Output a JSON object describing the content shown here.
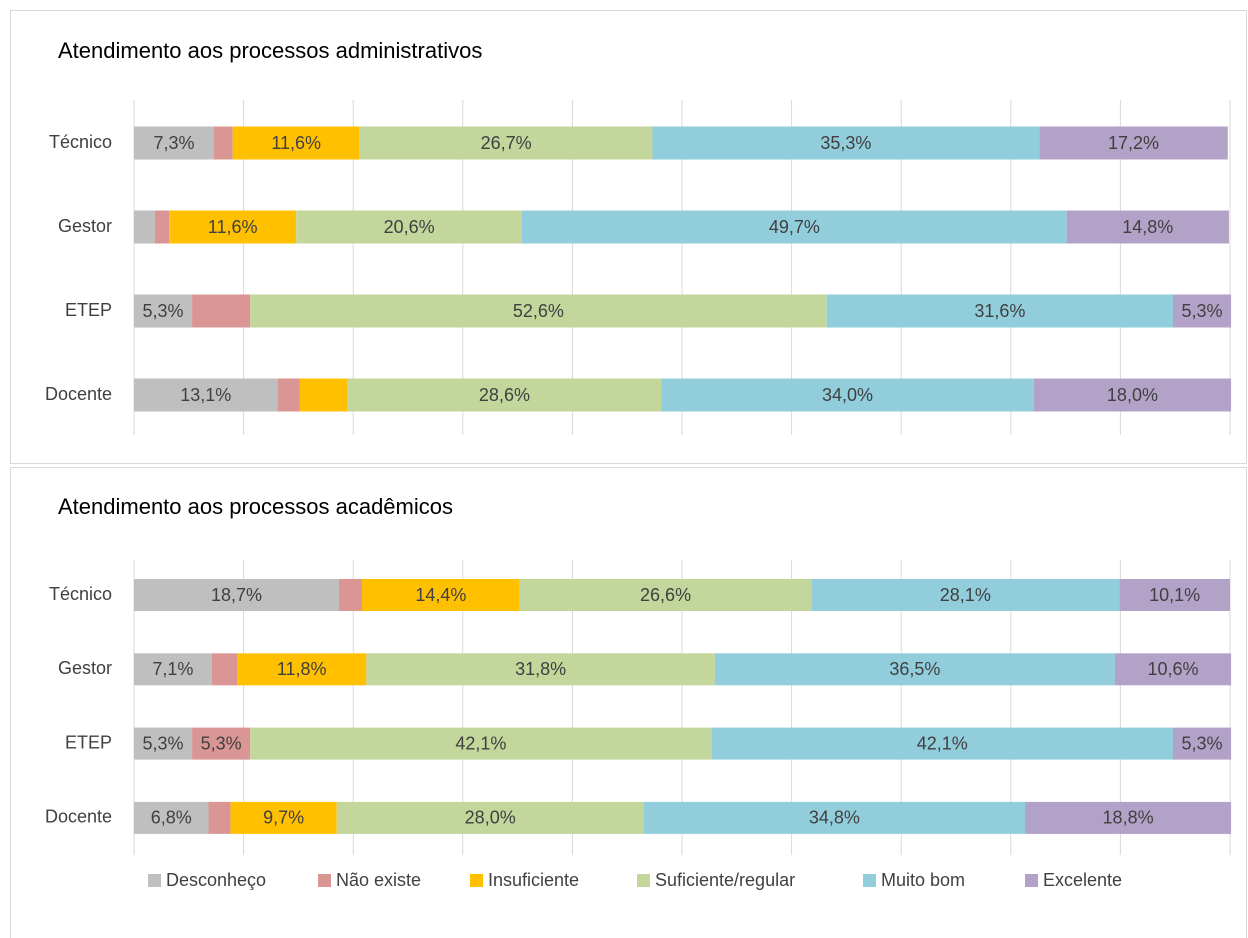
{
  "chart_data": [
    {
      "type": "stacked-bar-horizontal",
      "title": "Atendimento aos processos administrativos",
      "categories": [
        "Técnico",
        "Gestor",
        "ETEP",
        "Docente"
      ],
      "xlim": [
        0,
        100
      ],
      "xticks": [
        0,
        10,
        20,
        30,
        40,
        50,
        60,
        70,
        80,
        90,
        100
      ],
      "grid": true,
      "series": [
        {
          "color": "#bfbfbf",
          "values": [
            7.3,
            1.9,
            5.3,
            13.1
          ],
          "value_labels": [
            "7,3%",
            null,
            "5,3%",
            "13,1%"
          ]
        },
        {
          "color": "#d99694",
          "values": [
            1.7,
            1.3,
            5.3,
            2.0
          ],
          "value_labels": [
            null,
            null,
            null,
            null
          ]
        },
        {
          "color": "#ffc000",
          "values": [
            11.6,
            11.6,
            0,
            4.4
          ],
          "value_labels": [
            "11,6%",
            "11,6%",
            null,
            null
          ]
        },
        {
          "color": "#c3d69b",
          "values": [
            26.7,
            20.6,
            52.6,
            28.6
          ],
          "value_labels": [
            "26,7%",
            "20,6%",
            "52,6%",
            "28,6%"
          ]
        },
        {
          "color": "#92cddc",
          "values": [
            35.3,
            49.7,
            31.6,
            34.0
          ],
          "value_labels": [
            "35,3%",
            "49,7%",
            "31,6%",
            "34,0%"
          ]
        },
        {
          "color": "#b3a2c7",
          "values": [
            17.2,
            14.8,
            5.3,
            18.0
          ],
          "value_labels": [
            "17,2%",
            "14,8%",
            "5,3%",
            "18,0%"
          ]
        }
      ]
    },
    {
      "type": "stacked-bar-horizontal",
      "title": "Atendimento aos processos acadêmicos",
      "categories": [
        "Técnico",
        "Gestor",
        "ETEP",
        "Docente"
      ],
      "xlim": [
        0,
        100
      ],
      "xticks": [
        0,
        10,
        20,
        30,
        40,
        50,
        60,
        70,
        80,
        90,
        100
      ],
      "grid": true,
      "series": [
        {
          "name": "Desconheço",
          "color": "#bfbfbf",
          "values": [
            18.7,
            7.1,
            5.3,
            6.8
          ],
          "value_labels": [
            "18,7%",
            "7,1%",
            "5,3%",
            "6,8%"
          ]
        },
        {
          "name": "Não existe",
          "color": "#d99694",
          "values": [
            2.1,
            2.3,
            5.3,
            2.0
          ],
          "value_labels": [
            null,
            null,
            "5,3%",
            null
          ]
        },
        {
          "name": "Insuficiente",
          "color": "#ffc000",
          "values": [
            14.4,
            11.8,
            0,
            9.7
          ],
          "value_labels": [
            "14,4%",
            "11,8%",
            null,
            "9,7%"
          ]
        },
        {
          "name": "Suficiente/regular",
          "color": "#c3d69b",
          "values": [
            26.6,
            31.8,
            42.1,
            28.0
          ],
          "value_labels": [
            "26,6%",
            "31,8%",
            "42,1%",
            "28,0%"
          ]
        },
        {
          "name": "Muito bom",
          "color": "#92cddc",
          "values": [
            28.1,
            36.5,
            42.1,
            34.8
          ],
          "value_labels": [
            "28,1%",
            "36,5%",
            "42,1%",
            "34,8%"
          ]
        },
        {
          "name": "Excelente",
          "color": "#b3a2c7",
          "values": [
            10.1,
            10.6,
            5.3,
            18.8
          ],
          "value_labels": [
            "10,1%",
            "10,6%",
            "5,3%",
            "18,8%"
          ]
        }
      ]
    }
  ]
}
